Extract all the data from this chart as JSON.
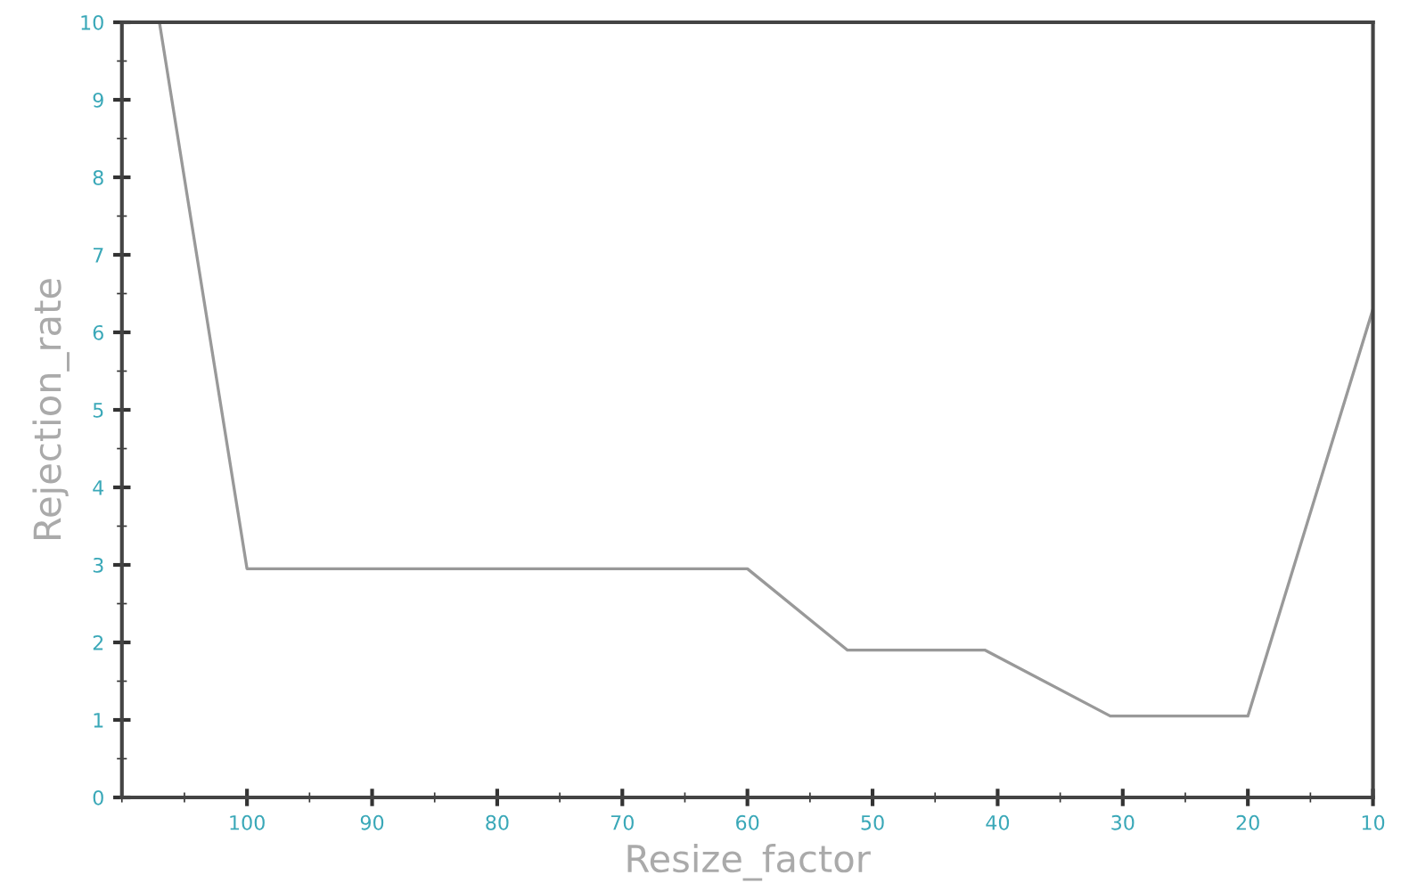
{
  "chart_data": {
    "type": "line",
    "xlabel": "Resize_factor",
    "ylabel": "Rejection_rate",
    "x": [
      107,
      100,
      60,
      52,
      41,
      31,
      20,
      10
    ],
    "series": [
      {
        "color": "#999999",
        "values": [
          10,
          2.95,
          2.95,
          1.9,
          1.9,
          1.05,
          1.05,
          6.3
        ]
      }
    ],
    "xlim": [
      110,
      10
    ],
    "xticks": [
      100,
      90,
      80,
      70,
      60,
      50,
      40,
      30,
      20,
      10
    ],
    "ylim": [
      0,
      10
    ],
    "yticks": [
      0,
      1,
      2,
      3,
      4,
      5,
      6,
      7,
      8,
      9,
      10
    ],
    "grid": false,
    "legend": false,
    "marker": "none",
    "line_style": "solid"
  }
}
